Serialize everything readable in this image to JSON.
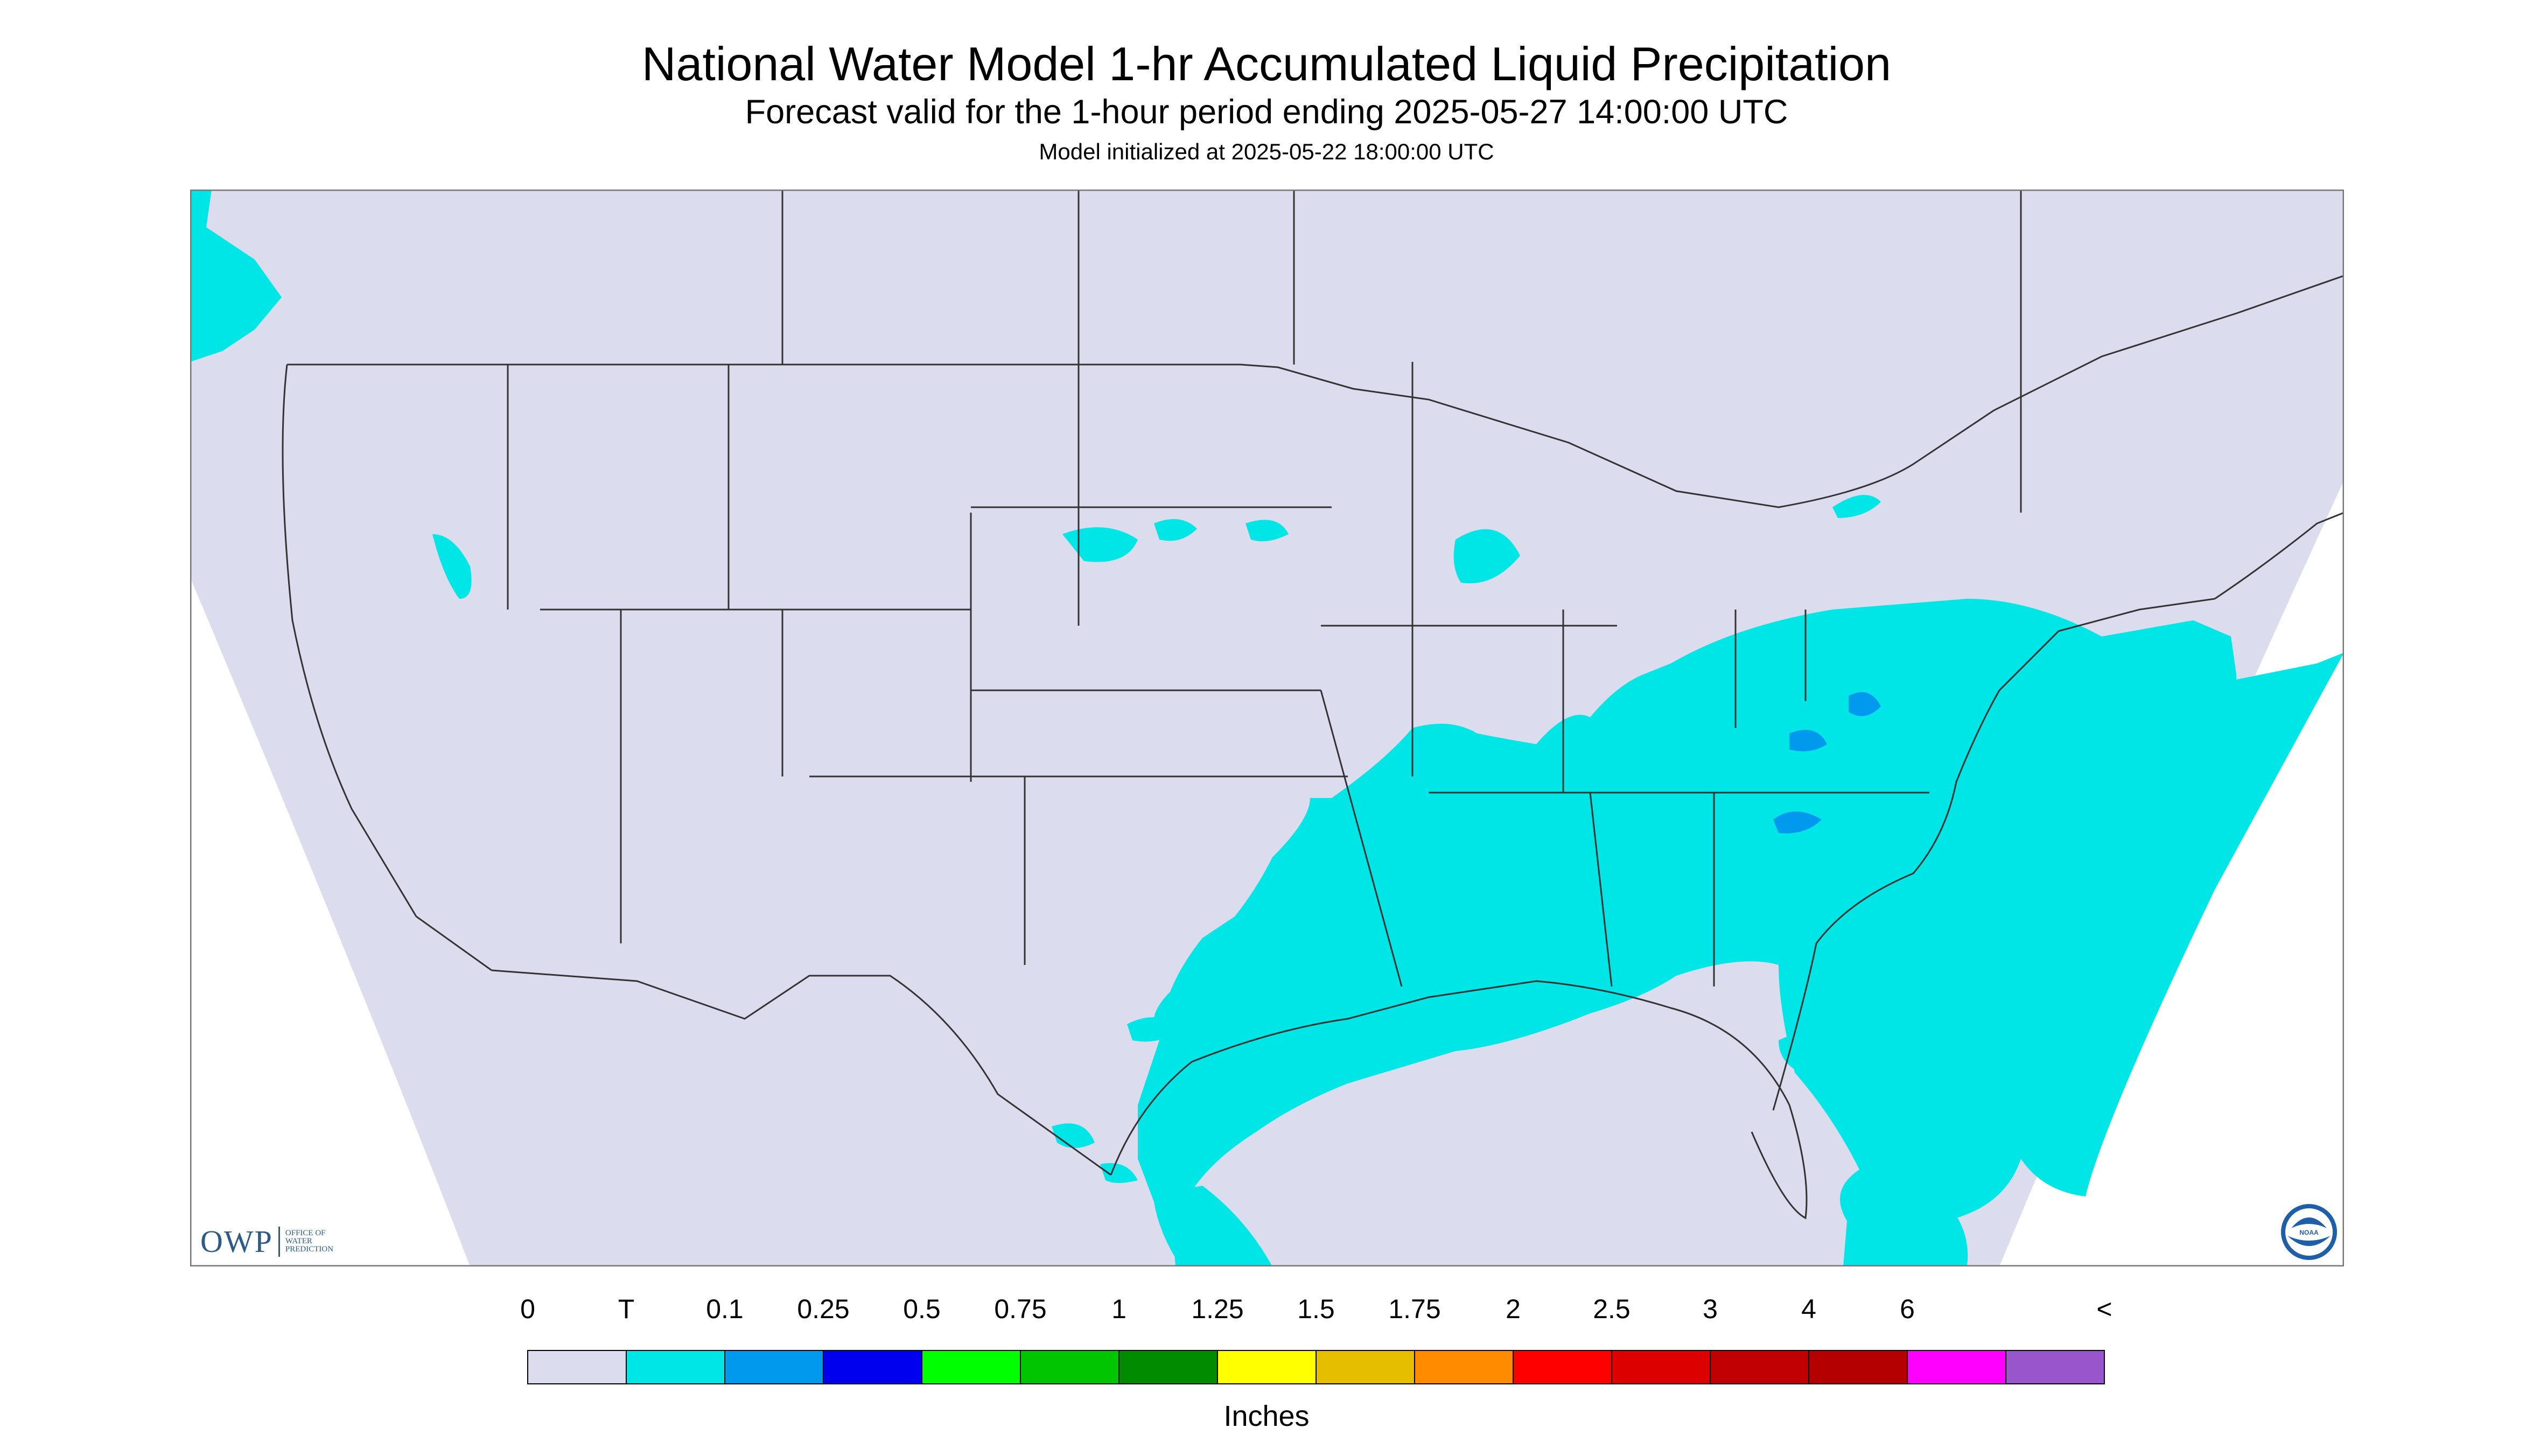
{
  "title": "National Water Model 1-hr Accumulated Liquid Precipitation",
  "subtitle": "Forecast valid for the 1-hour period ending 2025-05-27 14:00:00 UTC",
  "init_line": "Model initialized at 2025-05-22 18:00:00 UTC",
  "legend": {
    "unit_label": "Inches",
    "bins": [
      {
        "label": "0",
        "color": "#dcdcef"
      },
      {
        "label": "T",
        "color": "#00e5e5"
      },
      {
        "label": "0.1",
        "color": "#0099ee"
      },
      {
        "label": "0.25",
        "color": "#0000ee"
      },
      {
        "label": "0.5",
        "color": "#00ff00"
      },
      {
        "label": "0.75",
        "color": "#00c500"
      },
      {
        "label": "1",
        "color": "#008b00"
      },
      {
        "label": "1.25",
        "color": "#ffff00"
      },
      {
        "label": "1.5",
        "color": "#e6be00"
      },
      {
        "label": "1.75",
        "color": "#ff8c00"
      },
      {
        "label": "2",
        "color": "#ff0000"
      },
      {
        "label": "2.5",
        "color": "#dd0000"
      },
      {
        "label": "3",
        "color": "#c00000"
      },
      {
        "label": "4",
        "color": "#b40000"
      },
      {
        "label": "6",
        "color": "#ff00ff"
      }
    ],
    "overflow_label": "<",
    "overflow_color": "#9955cc"
  },
  "map": {
    "background_color": "#dcdcef",
    "outside_domain_color": "#ffffff",
    "precip_color": "#00e5e5",
    "heavier_color": "#0099ee"
  },
  "owp_logo": {
    "mark": "OWP",
    "lines": [
      "OFFICE OF",
      "WATER",
      "PREDICTION"
    ]
  },
  "noaa_logo": {
    "text": "NOAA",
    "icon": "noaa-seal-icon"
  }
}
